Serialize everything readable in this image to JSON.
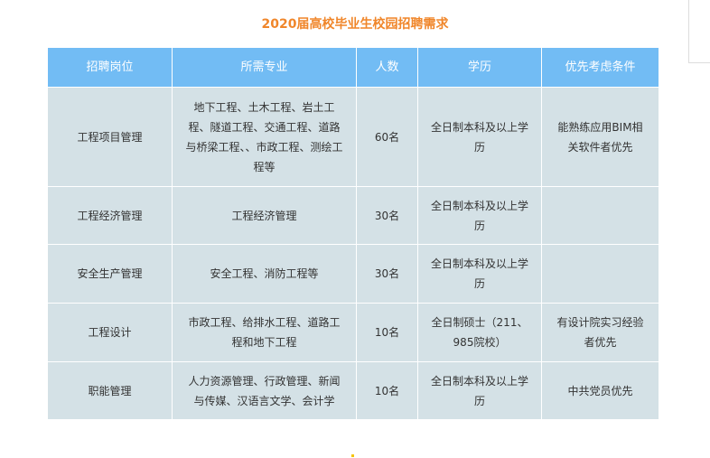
{
  "title": "2020届高校毕业生校园招聘需求",
  "table": {
    "headers": [
      "招聘岗位",
      "所需专业",
      "人数",
      "学历",
      "优先考虑条件"
    ],
    "rows": [
      [
        "工程项目管理",
        "地下工程、土木工程、岩土工程、隧道工程、交通工程、道路与桥梁工程、、市政工程、测绘工程等",
        "60名",
        "全日制本科及以上学历",
        "能熟练应用BIM相关软件者优先"
      ],
      [
        "工程经济管理",
        "工程经济管理",
        "30名",
        "全日制本科及以上学历",
        ""
      ],
      [
        "安全生产管理",
        "安全工程、消防工程等",
        "30名",
        "全日制本科及以上学历",
        ""
      ],
      [
        "工程设计",
        "市政工程、给排水工程、道路工程和地下工程",
        "10名",
        "全日制硕士（211、985院校）",
        "有设计院实习经验者优先"
      ],
      [
        "职能管理",
        "人力资源管理、行政管理、新闻与传媒、汉语言文学、会计学",
        "10名",
        "全日制本科及以上学历",
        "中共党员优先"
      ]
    ]
  },
  "colors": {
    "title": "#f0862a",
    "header_bg": "#72bcf4",
    "row_bg": "#d4e1e6"
  }
}
